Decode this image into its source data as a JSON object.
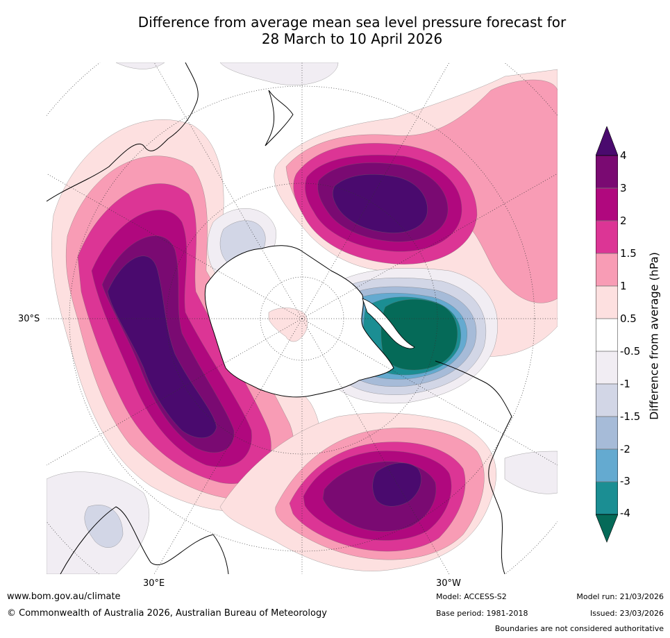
{
  "title": {
    "line1": "Difference from average mean sea level pressure forecast for",
    "line2": "28 March to 10 April 2026"
  },
  "map": {
    "lat_label": "30°S",
    "lon_labels": {
      "east": "30°E",
      "west": "30°W"
    }
  },
  "colorbar": {
    "title": "Difference from average (hPa)",
    "ticks": [
      "4",
      "3",
      "2",
      "1.5",
      "1",
      "0.5",
      "-0.5",
      "-1",
      "-1.5",
      "-2",
      "-3",
      "-4"
    ],
    "colors": {
      "over": "#4a0a6e",
      "p4": "#7a0a72",
      "p3": "#b0087e",
      "p2": "#dc3595",
      "p15": "#f89cb5",
      "p1": "#fde0e0",
      "z": "#ffffff",
      "n05": "#f1edf3",
      "n1": "#d2d6e6",
      "n15": "#a6bbd8",
      "n2": "#64aad0",
      "n3": "#1b8e93",
      "under": "#056a58"
    }
  },
  "footer": {
    "website": "www.bom.gov.au/climate",
    "copyright": "© Commonwealth of Australia 2026, Australian Bureau of Meteorology",
    "model": "Model: ACCESS-S2",
    "base_period": "Base period: 1981-2018",
    "model_run": "Model run: 21/03/2026",
    "issued": "Issued: 23/03/2026",
    "disclaimer": "Boundaries are not considered authoritative"
  }
}
